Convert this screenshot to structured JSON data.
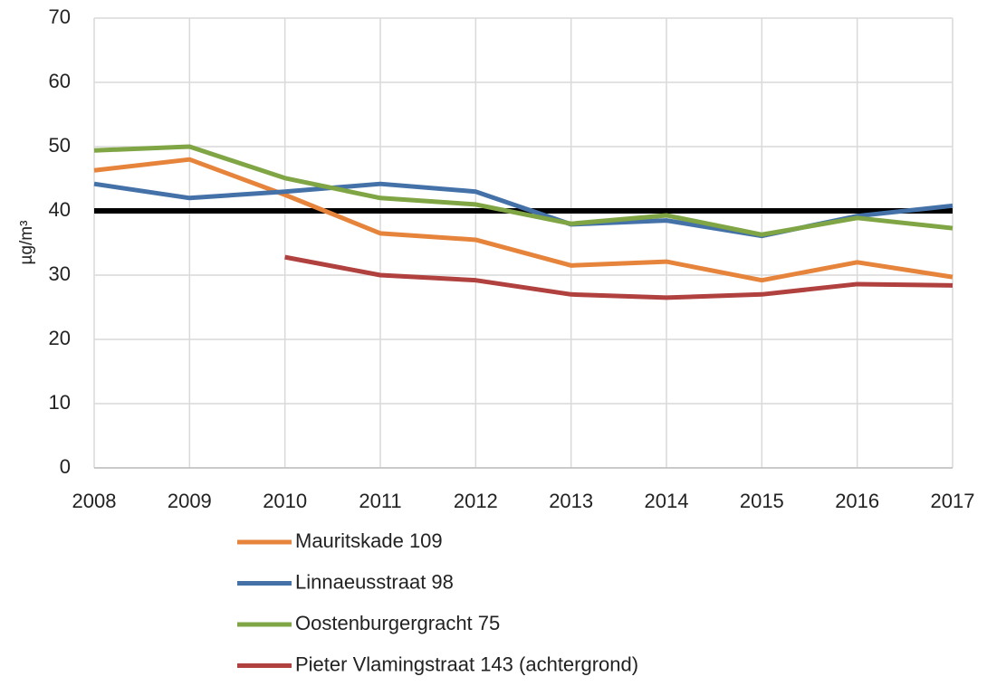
{
  "chart_data": {
    "type": "line",
    "y_label": "µg/m³",
    "x": [
      2008,
      2009,
      2010,
      2011,
      2012,
      2013,
      2014,
      2015,
      2016,
      2017
    ],
    "xlim": [
      2008,
      2017
    ],
    "xticks": [
      2008,
      2009,
      2010,
      2011,
      2012,
      2013,
      2014,
      2015,
      2016,
      2017
    ],
    "ylim": [
      0,
      70
    ],
    "yticks": [
      0,
      10,
      20,
      30,
      40,
      50,
      60,
      70
    ],
    "grid": true,
    "reference_lines": [
      {
        "value": 40,
        "color": "#000000"
      }
    ],
    "series": [
      {
        "name": "Mauritskade 109",
        "color": "#e6843c",
        "values": [
          46.3,
          48.0,
          42.5,
          36.5,
          35.5,
          31.5,
          32.1,
          29.2,
          32.0,
          29.7
        ]
      },
      {
        "name": "Linnaeusstraat 98",
        "color": "#4472a8",
        "values": [
          44.2,
          42.0,
          43.0,
          44.2,
          43.0,
          37.9,
          38.5,
          36.1,
          39.2,
          40.8
        ]
      },
      {
        "name": "Oostenburgergracht 75",
        "color": "#7fa544",
        "values": [
          49.4,
          50.0,
          45.1,
          42.0,
          41.0,
          38.0,
          39.3,
          36.3,
          38.9,
          37.3
        ]
      },
      {
        "name": "Pieter Vlamingstraat 143 (achtergrond)",
        "color": "#b0413e",
        "values": [
          null,
          null,
          32.8,
          30.0,
          29.2,
          27.0,
          26.5,
          27.0,
          28.6,
          28.4
        ]
      }
    ]
  }
}
